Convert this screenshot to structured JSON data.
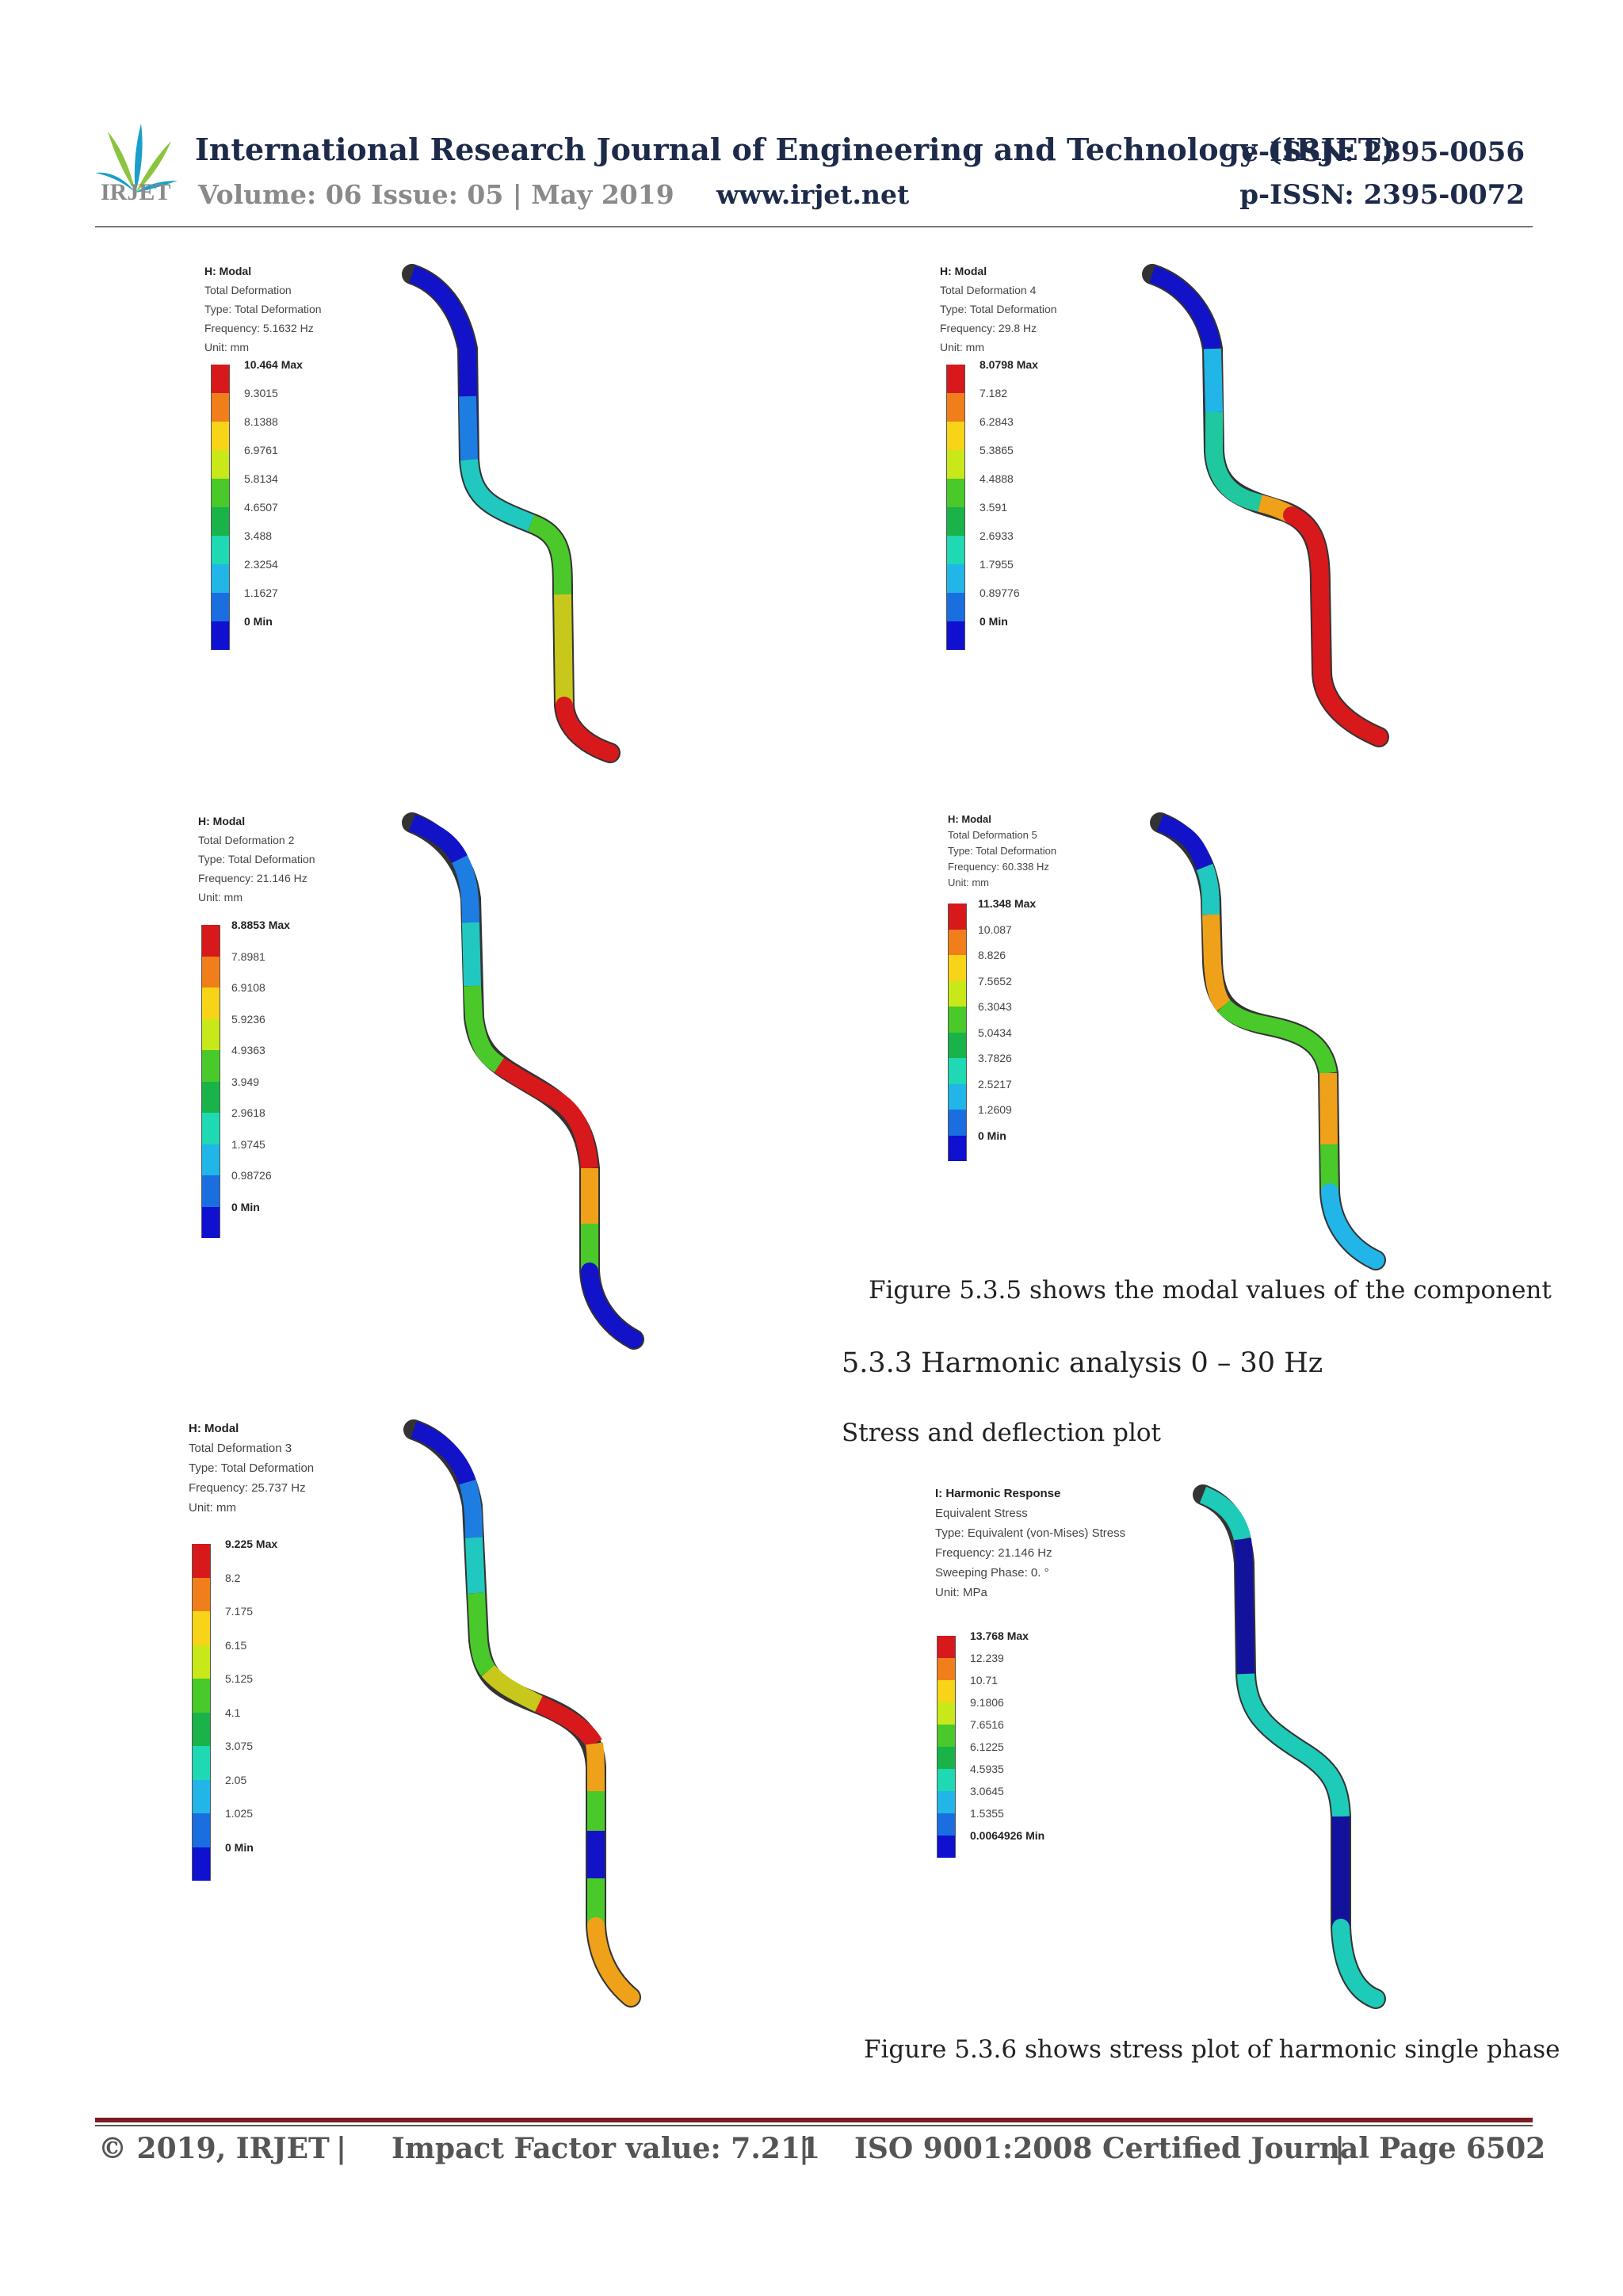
{
  "header": {
    "journal_title": "International Research Journal of Engineering and Technology (IRJET)",
    "volume": "Volume: 06 Issue: 05 | May 2019",
    "website": "www.irjet.net",
    "e_issn": "e-ISSN: 2395-0056",
    "p_issn": "p-ISSN: 2395-0072",
    "logo_text": "IRJET"
  },
  "panels": [
    {
      "info": [
        "H: Modal",
        "Total Deformation",
        "Type: Total Deformation",
        "Frequency: 5.1632 Hz",
        "Unit: mm"
      ],
      "legend": [
        "10.464 Max",
        "9.3015",
        "8.1388",
        "6.9761",
        "5.8134",
        "4.6507",
        "3.488",
        "2.3254",
        "1.1627",
        "0 Min"
      ]
    },
    {
      "info": [
        "H: Modal",
        "Total Deformation 4",
        "Type: Total Deformation",
        "Frequency: 29.8 Hz",
        "Unit: mm"
      ],
      "legend": [
        "8.0798 Max",
        "7.182",
        "6.2843",
        "5.3865",
        "4.4888",
        "3.591",
        "2.6933",
        "1.7955",
        "0.89776",
        "0 Min"
      ]
    },
    {
      "info": [
        "H: Modal",
        "Total Deformation 2",
        "Type: Total Deformation",
        "Frequency: 21.146 Hz",
        "Unit: mm"
      ],
      "legend": [
        "8.8853 Max",
        "7.8981",
        "6.9108",
        "5.9236",
        "4.9363",
        "3.949",
        "2.9618",
        "1.9745",
        "0.98726",
        "0 Min"
      ]
    },
    {
      "info": [
        "H: Modal",
        "Total Deformation 5",
        "Type: Total Deformation",
        "Frequency: 60.338 Hz",
        "Unit: mm"
      ],
      "legend": [
        "11.348 Max",
        "10.087",
        "8.826",
        "7.5652",
        "6.3043",
        "5.0434",
        "3.7826",
        "2.5217",
        "1.2609",
        "0 Min"
      ]
    },
    {
      "info": [
        "H: Modal",
        "Total Deformation 3",
        "Type: Total Deformation",
        "Frequency: 25.737 Hz",
        "Unit: mm"
      ],
      "legend": [
        "9.225 Max",
        "8.2",
        "7.175",
        "6.15",
        "5.125",
        "4.1",
        "3.075",
        "2.05",
        "1.025",
        "0 Min"
      ]
    },
    {
      "info": [
        "I: Harmonic Response",
        "Equivalent Stress",
        "Type: Equivalent (von-Mises) Stress",
        "Frequency: 21.146 Hz",
        "Sweeping Phase: 0. °",
        "Unit: MPa"
      ],
      "legend": [
        "13.768 Max",
        "12.239",
        "10.71",
        "9.1806",
        "7.6516",
        "6.1225",
        "4.5935",
        "3.0645",
        "1.5355",
        "0.0064926 Min"
      ]
    }
  ],
  "legend_colors": [
    "#d7191c",
    "#f07f1b",
    "#f7d417",
    "#c9e81a",
    "#49c92a",
    "#19b34a",
    "#1ed9b4",
    "#22b5e8",
    "#1a6ee0",
    "#1010d0"
  ],
  "text": {
    "caption_1": "Figure 5.3.5 shows the modal values of the component",
    "section_heading": "5.3.3 Harmonic analysis 0 – 30 Hz",
    "subheading": "Stress and deflection plot",
    "caption_2": "Figure 5.3.6 shows stress plot of harmonic single phase"
  },
  "footer": {
    "copyright": "© 2019, IRJET",
    "sep": "|",
    "impact": "Impact Factor value: 7.211",
    "iso": "ISO 9001:2008 Certified Journal",
    "page": "Page 6502"
  }
}
